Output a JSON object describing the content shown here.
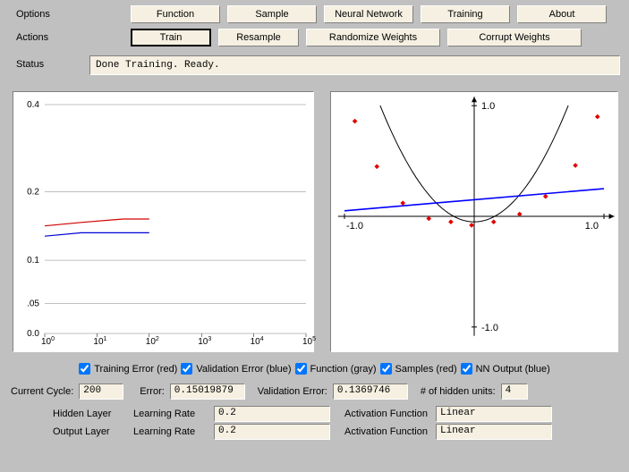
{
  "labels": {
    "options": "Options",
    "actions": "Actions",
    "status": "Status"
  },
  "options_buttons": [
    "Function",
    "Sample",
    "Neural Network",
    "Training",
    "About"
  ],
  "actions_buttons": [
    "Train",
    "Resample",
    "Randomize Weights",
    "Corrupt Weights"
  ],
  "status_text": "Done Training. Ready.",
  "left_chart": {
    "type": "line-logx",
    "bg": "#ffffff",
    "grid_color": "#808080",
    "yticks": [
      "0.4",
      "0.2",
      "0.1",
      ".05",
      "0.0"
    ],
    "xexp": [
      "0",
      "1",
      "2",
      "3",
      "4",
      "5"
    ],
    "ylim": [
      0,
      0.4
    ],
    "red_series": {
      "color": "#d40000",
      "points": [
        [
          0,
          0.15
        ],
        [
          0.7,
          0.155
        ],
        [
          1.5,
          0.16
        ],
        [
          2.0,
          0.16
        ]
      ]
    },
    "blue_series": {
      "color": "#0000d4",
      "points": [
        [
          0,
          0.135
        ],
        [
          0.7,
          0.14
        ],
        [
          1.5,
          0.14
        ],
        [
          2.0,
          0.14
        ]
      ]
    }
  },
  "right_chart": {
    "type": "function-plot",
    "bg": "#ffffff",
    "axis_color": "#000000",
    "xlim": [
      -1.0,
      1.0
    ],
    "ylim": [
      -1.0,
      1.0
    ],
    "axis_labels": {
      "xl": "-1.0",
      "xr": "1.0",
      "yt": "1.0",
      "yb": "-1.0"
    },
    "parabola": {
      "color": "#000000",
      "a": 2.0,
      "c": -0.05
    },
    "samples": {
      "color": "#e00000",
      "size": 4,
      "points": [
        [
          -0.92,
          0.86
        ],
        [
          -0.75,
          0.45
        ],
        [
          -0.55,
          0.12
        ],
        [
          -0.35,
          -0.02
        ],
        [
          -0.18,
          -0.05
        ],
        [
          -0.02,
          -0.08
        ],
        [
          0.15,
          -0.05
        ],
        [
          0.35,
          0.02
        ],
        [
          0.55,
          0.18
        ],
        [
          0.78,
          0.46
        ],
        [
          0.95,
          0.9
        ]
      ]
    },
    "nn_output": {
      "color": "#0000ff",
      "p1": [
        -1.0,
        0.05
      ],
      "p2": [
        1.0,
        0.25
      ]
    }
  },
  "legend": [
    "Training Error (red)",
    "Validation Error (blue)",
    "Function (gray)",
    "Samples (red)",
    "NN Output (blue)"
  ],
  "fields": {
    "current_cycle_label": "Current Cycle:",
    "current_cycle": "200",
    "error_label": "Error:",
    "error": "0.15019879",
    "val_error_label": "Validation Error:",
    "val_error": "0.1369746",
    "hidden_units_label": "# of hidden units:",
    "hidden_units": "4"
  },
  "layers": {
    "hidden_label": "Hidden Layer",
    "output_label": "Output Layer",
    "lr_label": "Learning Rate",
    "af_label": "Activation Function",
    "hidden_lr": "0.2",
    "output_lr": "0.2",
    "hidden_af": "Linear",
    "output_af": "Linear"
  }
}
